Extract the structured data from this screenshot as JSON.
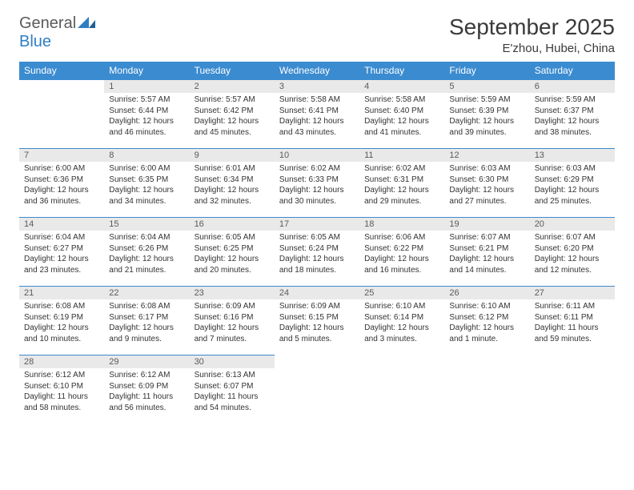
{
  "brand": {
    "general": "General",
    "blue": "Blue"
  },
  "title": "September 2025",
  "location": "E'zhou, Hubei, China",
  "accent_color": "#3b8bd0",
  "daynum_bg": "#e9e9e9",
  "text_color": "#333333",
  "daynames": [
    "Sunday",
    "Monday",
    "Tuesday",
    "Wednesday",
    "Thursday",
    "Friday",
    "Saturday"
  ],
  "weeks": [
    [
      {
        "n": "",
        "sr": "",
        "ss": "",
        "dl": ""
      },
      {
        "n": "1",
        "sr": "Sunrise: 5:57 AM",
        "ss": "Sunset: 6:44 PM",
        "dl": "Daylight: 12 hours and 46 minutes."
      },
      {
        "n": "2",
        "sr": "Sunrise: 5:57 AM",
        "ss": "Sunset: 6:42 PM",
        "dl": "Daylight: 12 hours and 45 minutes."
      },
      {
        "n": "3",
        "sr": "Sunrise: 5:58 AM",
        "ss": "Sunset: 6:41 PM",
        "dl": "Daylight: 12 hours and 43 minutes."
      },
      {
        "n": "4",
        "sr": "Sunrise: 5:58 AM",
        "ss": "Sunset: 6:40 PM",
        "dl": "Daylight: 12 hours and 41 minutes."
      },
      {
        "n": "5",
        "sr": "Sunrise: 5:59 AM",
        "ss": "Sunset: 6:39 PM",
        "dl": "Daylight: 12 hours and 39 minutes."
      },
      {
        "n": "6",
        "sr": "Sunrise: 5:59 AM",
        "ss": "Sunset: 6:37 PM",
        "dl": "Daylight: 12 hours and 38 minutes."
      }
    ],
    [
      {
        "n": "7",
        "sr": "Sunrise: 6:00 AM",
        "ss": "Sunset: 6:36 PM",
        "dl": "Daylight: 12 hours and 36 minutes."
      },
      {
        "n": "8",
        "sr": "Sunrise: 6:00 AM",
        "ss": "Sunset: 6:35 PM",
        "dl": "Daylight: 12 hours and 34 minutes."
      },
      {
        "n": "9",
        "sr": "Sunrise: 6:01 AM",
        "ss": "Sunset: 6:34 PM",
        "dl": "Daylight: 12 hours and 32 minutes."
      },
      {
        "n": "10",
        "sr": "Sunrise: 6:02 AM",
        "ss": "Sunset: 6:33 PM",
        "dl": "Daylight: 12 hours and 30 minutes."
      },
      {
        "n": "11",
        "sr": "Sunrise: 6:02 AM",
        "ss": "Sunset: 6:31 PM",
        "dl": "Daylight: 12 hours and 29 minutes."
      },
      {
        "n": "12",
        "sr": "Sunrise: 6:03 AM",
        "ss": "Sunset: 6:30 PM",
        "dl": "Daylight: 12 hours and 27 minutes."
      },
      {
        "n": "13",
        "sr": "Sunrise: 6:03 AM",
        "ss": "Sunset: 6:29 PM",
        "dl": "Daylight: 12 hours and 25 minutes."
      }
    ],
    [
      {
        "n": "14",
        "sr": "Sunrise: 6:04 AM",
        "ss": "Sunset: 6:27 PM",
        "dl": "Daylight: 12 hours and 23 minutes."
      },
      {
        "n": "15",
        "sr": "Sunrise: 6:04 AM",
        "ss": "Sunset: 6:26 PM",
        "dl": "Daylight: 12 hours and 21 minutes."
      },
      {
        "n": "16",
        "sr": "Sunrise: 6:05 AM",
        "ss": "Sunset: 6:25 PM",
        "dl": "Daylight: 12 hours and 20 minutes."
      },
      {
        "n": "17",
        "sr": "Sunrise: 6:05 AM",
        "ss": "Sunset: 6:24 PM",
        "dl": "Daylight: 12 hours and 18 minutes."
      },
      {
        "n": "18",
        "sr": "Sunrise: 6:06 AM",
        "ss": "Sunset: 6:22 PM",
        "dl": "Daylight: 12 hours and 16 minutes."
      },
      {
        "n": "19",
        "sr": "Sunrise: 6:07 AM",
        "ss": "Sunset: 6:21 PM",
        "dl": "Daylight: 12 hours and 14 minutes."
      },
      {
        "n": "20",
        "sr": "Sunrise: 6:07 AM",
        "ss": "Sunset: 6:20 PM",
        "dl": "Daylight: 12 hours and 12 minutes."
      }
    ],
    [
      {
        "n": "21",
        "sr": "Sunrise: 6:08 AM",
        "ss": "Sunset: 6:19 PM",
        "dl": "Daylight: 12 hours and 10 minutes."
      },
      {
        "n": "22",
        "sr": "Sunrise: 6:08 AM",
        "ss": "Sunset: 6:17 PM",
        "dl": "Daylight: 12 hours and 9 minutes."
      },
      {
        "n": "23",
        "sr": "Sunrise: 6:09 AM",
        "ss": "Sunset: 6:16 PM",
        "dl": "Daylight: 12 hours and 7 minutes."
      },
      {
        "n": "24",
        "sr": "Sunrise: 6:09 AM",
        "ss": "Sunset: 6:15 PM",
        "dl": "Daylight: 12 hours and 5 minutes."
      },
      {
        "n": "25",
        "sr": "Sunrise: 6:10 AM",
        "ss": "Sunset: 6:14 PM",
        "dl": "Daylight: 12 hours and 3 minutes."
      },
      {
        "n": "26",
        "sr": "Sunrise: 6:10 AM",
        "ss": "Sunset: 6:12 PM",
        "dl": "Daylight: 12 hours and 1 minute."
      },
      {
        "n": "27",
        "sr": "Sunrise: 6:11 AM",
        "ss": "Sunset: 6:11 PM",
        "dl": "Daylight: 11 hours and 59 minutes."
      }
    ],
    [
      {
        "n": "28",
        "sr": "Sunrise: 6:12 AM",
        "ss": "Sunset: 6:10 PM",
        "dl": "Daylight: 11 hours and 58 minutes."
      },
      {
        "n": "29",
        "sr": "Sunrise: 6:12 AM",
        "ss": "Sunset: 6:09 PM",
        "dl": "Daylight: 11 hours and 56 minutes."
      },
      {
        "n": "30",
        "sr": "Sunrise: 6:13 AM",
        "ss": "Sunset: 6:07 PM",
        "dl": "Daylight: 11 hours and 54 minutes."
      },
      {
        "n": "",
        "sr": "",
        "ss": "",
        "dl": ""
      },
      {
        "n": "",
        "sr": "",
        "ss": "",
        "dl": ""
      },
      {
        "n": "",
        "sr": "",
        "ss": "",
        "dl": ""
      },
      {
        "n": "",
        "sr": "",
        "ss": "",
        "dl": ""
      }
    ]
  ]
}
